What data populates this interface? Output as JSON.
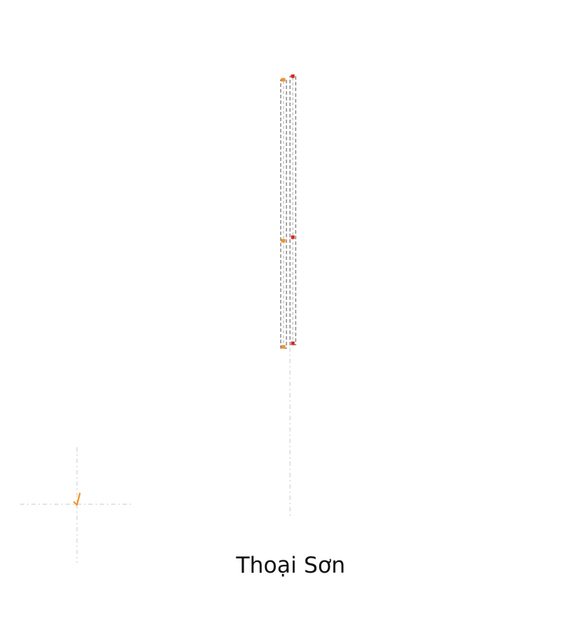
{
  "map": {
    "place_name": "Thoại Sơn",
    "colors": {
      "background": "#ffffff",
      "route_line": "#6f6f6f",
      "route_casing": "#ffffff",
      "guide_line": "#d3d3d3",
      "marker_orange": "#f0932b",
      "marker_red": "#e02020",
      "label_text": "#111111"
    }
  }
}
